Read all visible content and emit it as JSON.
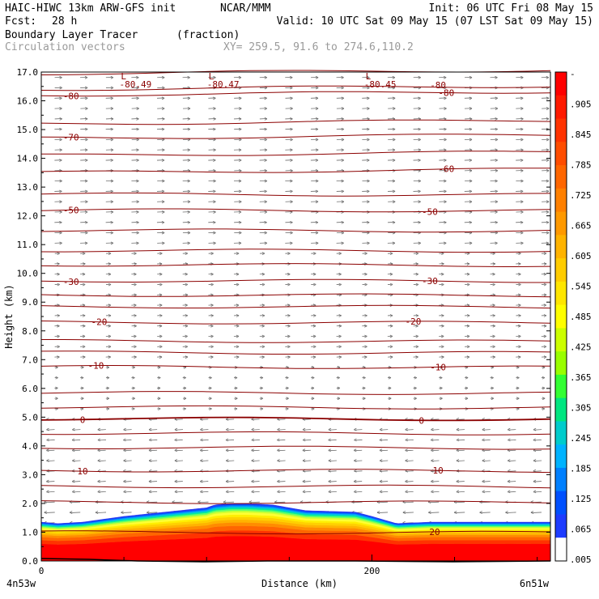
{
  "header": {
    "title_left": "HAIC-HIWC 13km ARW-GFS init",
    "org": "NCAR/MMM",
    "init": "Init: 06 UTC Fri 08 May 15",
    "fcst_label": "Fcst:",
    "fcst_value": "28 h",
    "valid": "Valid: 10 UTC Sat 09 May 15 (07 LST Sat 09 May 15)",
    "field_name": "Boundary Layer Tracer",
    "field_units": "(fraction)",
    "overlay": "Circulation vectors",
    "xy_range": "XY= 259.5, 91.6 to 274.6,110.2"
  },
  "chart_data": {
    "type": "heatmap",
    "title": "Boundary Layer Tracer",
    "ylabel": "Height (km)",
    "xlabel": "Distance (km)",
    "x_endpoints": [
      "4n53w",
      "6n51w"
    ],
    "x_ticks": [
      "0",
      "200"
    ],
    "xlim": [
      0,
      308
    ],
    "ylim": [
      0,
      17
    ],
    "y_ticks": [
      "0.0",
      "1.0",
      "2.0",
      "3.0",
      "4.0",
      "5.0",
      "6.0",
      "7.0",
      "8.0",
      "9.0",
      "10.0",
      "11.0",
      "12.0",
      "13.0",
      "14.0",
      "15.0",
      "16.0",
      "17.0"
    ],
    "colorbar": {
      "labels": [
        "-",
        ".905",
        ".845",
        ".785",
        ".725",
        ".665",
        ".605",
        ".545",
        ".485",
        ".425",
        ".365",
        ".305",
        ".245",
        ".185",
        ".125",
        ".065",
        ".005"
      ],
      "colors": [
        "#ff0000",
        "#ff1a00",
        "#ff3300",
        "#ff4d00",
        "#ff6600",
        "#ff8000",
        "#ff9900",
        "#ffb300",
        "#ffcc00",
        "#ffe600",
        "#ffff00",
        "#ccff00",
        "#99ff00",
        "#33ff33",
        "#00e680",
        "#00cccc",
        "#00b3ff",
        "#0080ff",
        "#0050ff",
        "#1e3cff",
        "#ffffff"
      ]
    },
    "tracer_top_km": {
      "x": [
        0,
        10,
        25,
        50,
        75,
        100,
        105,
        115,
        125,
        140,
        160,
        190,
        200,
        215,
        235,
        260,
        290,
        308
      ],
      "y": [
        1.35,
        1.3,
        1.35,
        1.55,
        1.7,
        1.85,
        1.95,
        2.0,
        2.0,
        1.95,
        1.75,
        1.7,
        1.55,
        1.3,
        1.35,
        1.35,
        1.35,
        1.35
      ]
    },
    "temperature_contours_c": [
      {
        "level": 20,
        "y": 1.0,
        "label_x": [
          238
        ]
      },
      {
        "level": 10,
        "y": 3.15,
        "label_x": [
          25,
          240
        ]
      },
      {
        "level": 0,
        "y": 4.95,
        "label_x": [
          25,
          230
        ]
      },
      {
        "level": -10,
        "y": 6.75,
        "label_x": [
          33,
          240
        ]
      },
      {
        "level": -20,
        "y": 8.3,
        "label_x": [
          35,
          225
        ]
      },
      {
        "level": -30,
        "y": 9.75,
        "label_x": [
          18,
          235
        ]
      },
      {
        "level": -50,
        "y": 12.2,
        "label_x": [
          18,
          235
        ]
      },
      {
        "level": -60,
        "y": 13.5,
        "label_x": [
          245
        ]
      },
      {
        "level": -70,
        "y": 14.7,
        "label_x": [
          18
        ]
      },
      {
        "level": -80,
        "y": 16.2,
        "label_x": [
          18,
          245
        ]
      }
    ],
    "extra_isotherm_heights_km": [
      2.05,
      2.6,
      3.95,
      4.45,
      5.35,
      5.85,
      7.25,
      7.65,
      8.85,
      9.25,
      10.3,
      10.8,
      11.5,
      12.75,
      14.1,
      15.2,
      16.4,
      16.95
    ],
    "low_markers": [
      {
        "label": "L",
        "x": 57,
        "value": "-80.49"
      },
      {
        "label": "L",
        "x": 110,
        "value": "-80.47"
      },
      {
        "label": "L",
        "x": 205,
        "value": "-80.45"
      }
    ],
    "extra_contour_labels": [
      {
        "text": "-80",
        "x": 240,
        "y": 16.55
      }
    ],
    "vectors_note": "circulation vectors: easterly (leftward) flow below ~5 km, westerly (rightward) aloft"
  }
}
